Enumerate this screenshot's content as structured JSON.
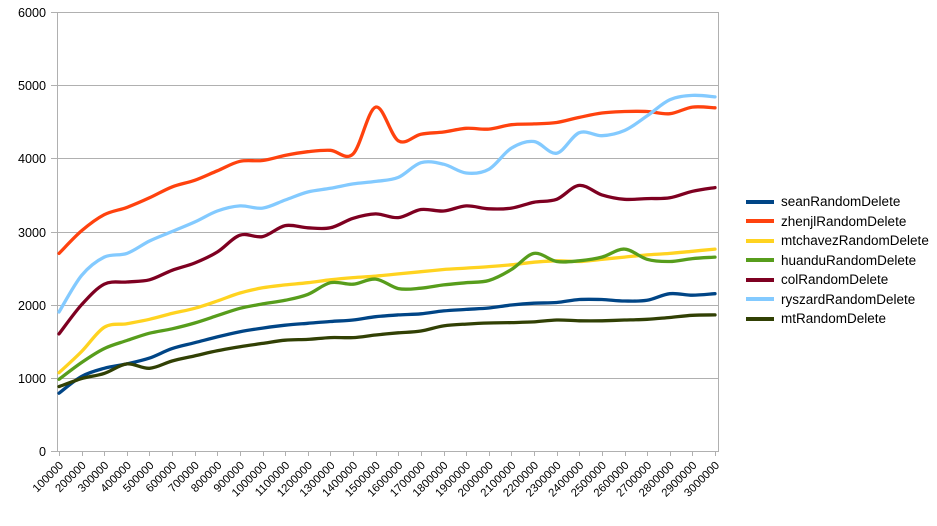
{
  "chart_data": {
    "type": "line",
    "title": "",
    "xlabel": "",
    "ylabel": "",
    "ylim": [
      0,
      6000
    ],
    "y_ticks": [
      0,
      1000,
      2000,
      3000,
      4000,
      5000,
      6000
    ],
    "x_tick_labels": [
      "100000",
      "200000",
      "300000",
      "400000",
      "500000",
      "600000",
      "700000",
      "800000",
      "900000",
      "1000000",
      "1100000",
      "1200000",
      "1300000",
      "1400000",
      "1500000",
      "1600000",
      "1700000",
      "1800000",
      "1900000",
      "2000000",
      "2100000",
      "2200000",
      "2300000",
      "2400000",
      "2500000",
      "2600000",
      "2700000",
      "2800000",
      "2900000",
      "3000000"
    ],
    "grid": "horizontal",
    "grid_color": "#b0b0b0",
    "legend_position": "right",
    "series": [
      {
        "name": "seanRandomDelete",
        "color": "#004586",
        "values": [
          790,
          1020,
          1130,
          1190,
          1270,
          1400,
          1480,
          1560,
          1630,
          1680,
          1720,
          1745,
          1770,
          1790,
          1835,
          1860,
          1875,
          1915,
          1935,
          1955,
          1995,
          2020,
          2030,
          2070,
          2070,
          2050,
          2060,
          2150,
          2130,
          2150
        ]
      },
      {
        "name": "zhenjlRandomDelete",
        "color": "#ff420e",
        "values": [
          2700,
          3010,
          3230,
          3330,
          3460,
          3610,
          3700,
          3830,
          3960,
          3970,
          4040,
          4090,
          4110,
          4060,
          4700,
          4240,
          4330,
          4360,
          4410,
          4400,
          4460,
          4470,
          4490,
          4560,
          4620,
          4640,
          4640,
          4610,
          4700,
          4690
        ]
      },
      {
        "name": "mtchavezRandomDelete",
        "color": "#ffd320",
        "values": [
          1070,
          1360,
          1690,
          1740,
          1800,
          1880,
          1950,
          2050,
          2160,
          2230,
          2270,
          2300,
          2340,
          2370,
          2390,
          2420,
          2450,
          2480,
          2500,
          2520,
          2545,
          2580,
          2600,
          2590,
          2620,
          2650,
          2680,
          2700,
          2730,
          2760
        ]
      },
      {
        "name": "huanduRandomDelete",
        "color": "#579d1c",
        "values": [
          980,
          1210,
          1400,
          1510,
          1610,
          1670,
          1750,
          1850,
          1950,
          2010,
          2060,
          2140,
          2300,
          2280,
          2350,
          2220,
          2225,
          2270,
          2300,
          2330,
          2480,
          2700,
          2590,
          2600,
          2650,
          2760,
          2620,
          2590,
          2630,
          2650
        ]
      },
      {
        "name": "colRandomDelete",
        "color": "#7e0021",
        "values": [
          1600,
          2000,
          2280,
          2310,
          2340,
          2470,
          2570,
          2720,
          2950,
          2930,
          3080,
          3050,
          3050,
          3180,
          3240,
          3190,
          3300,
          3280,
          3350,
          3310,
          3320,
          3400,
          3440,
          3630,
          3500,
          3440,
          3450,
          3460,
          3550,
          3600
        ]
      },
      {
        "name": "ryszardRandomDelete",
        "color": "#83caff",
        "values": [
          1900,
          2400,
          2650,
          2700,
          2870,
          3000,
          3130,
          3280,
          3350,
          3320,
          3430,
          3540,
          3590,
          3650,
          3685,
          3740,
          3940,
          3920,
          3800,
          3850,
          4140,
          4230,
          4070,
          4350,
          4310,
          4380,
          4580,
          4800,
          4860,
          4840
        ]
      },
      {
        "name": "mtRandomDelete",
        "color": "#314004",
        "values": [
          880,
          990,
          1060,
          1190,
          1130,
          1230,
          1300,
          1370,
          1425,
          1470,
          1515,
          1525,
          1550,
          1550,
          1585,
          1615,
          1640,
          1710,
          1735,
          1750,
          1755,
          1765,
          1790,
          1780,
          1780,
          1790,
          1800,
          1825,
          1855,
          1860
        ]
      }
    ]
  }
}
